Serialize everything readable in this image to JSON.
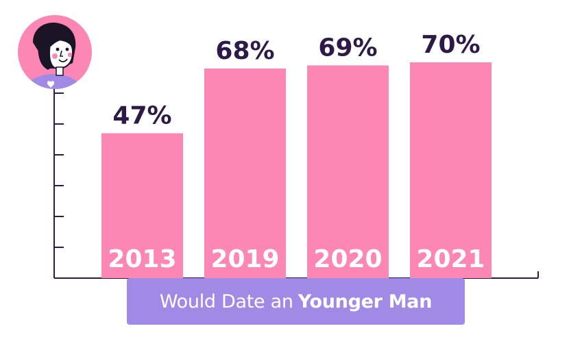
{
  "chart_data": {
    "type": "bar",
    "categories": [
      "2013",
      "2019",
      "2020",
      "2021"
    ],
    "values": [
      47,
      68,
      69,
      70
    ],
    "value_labels": [
      "47%",
      "68%",
      "69%",
      "70%"
    ],
    "ylim": [
      0,
      100
    ],
    "grid": false
  },
  "caption": {
    "regular": "Would Date an",
    "bold": "Younger Man"
  },
  "colors": {
    "bar": "#fd87b4",
    "axis": "#2e1a47",
    "value_label": "#2e1a47",
    "category_label": "#ffffff",
    "caption_bg": "#a18ae6",
    "avatar_bg": "#fd87b4",
    "avatar_shirt": "#a18ae6"
  },
  "icons": {
    "avatar": "woman-avatar-icon"
  }
}
